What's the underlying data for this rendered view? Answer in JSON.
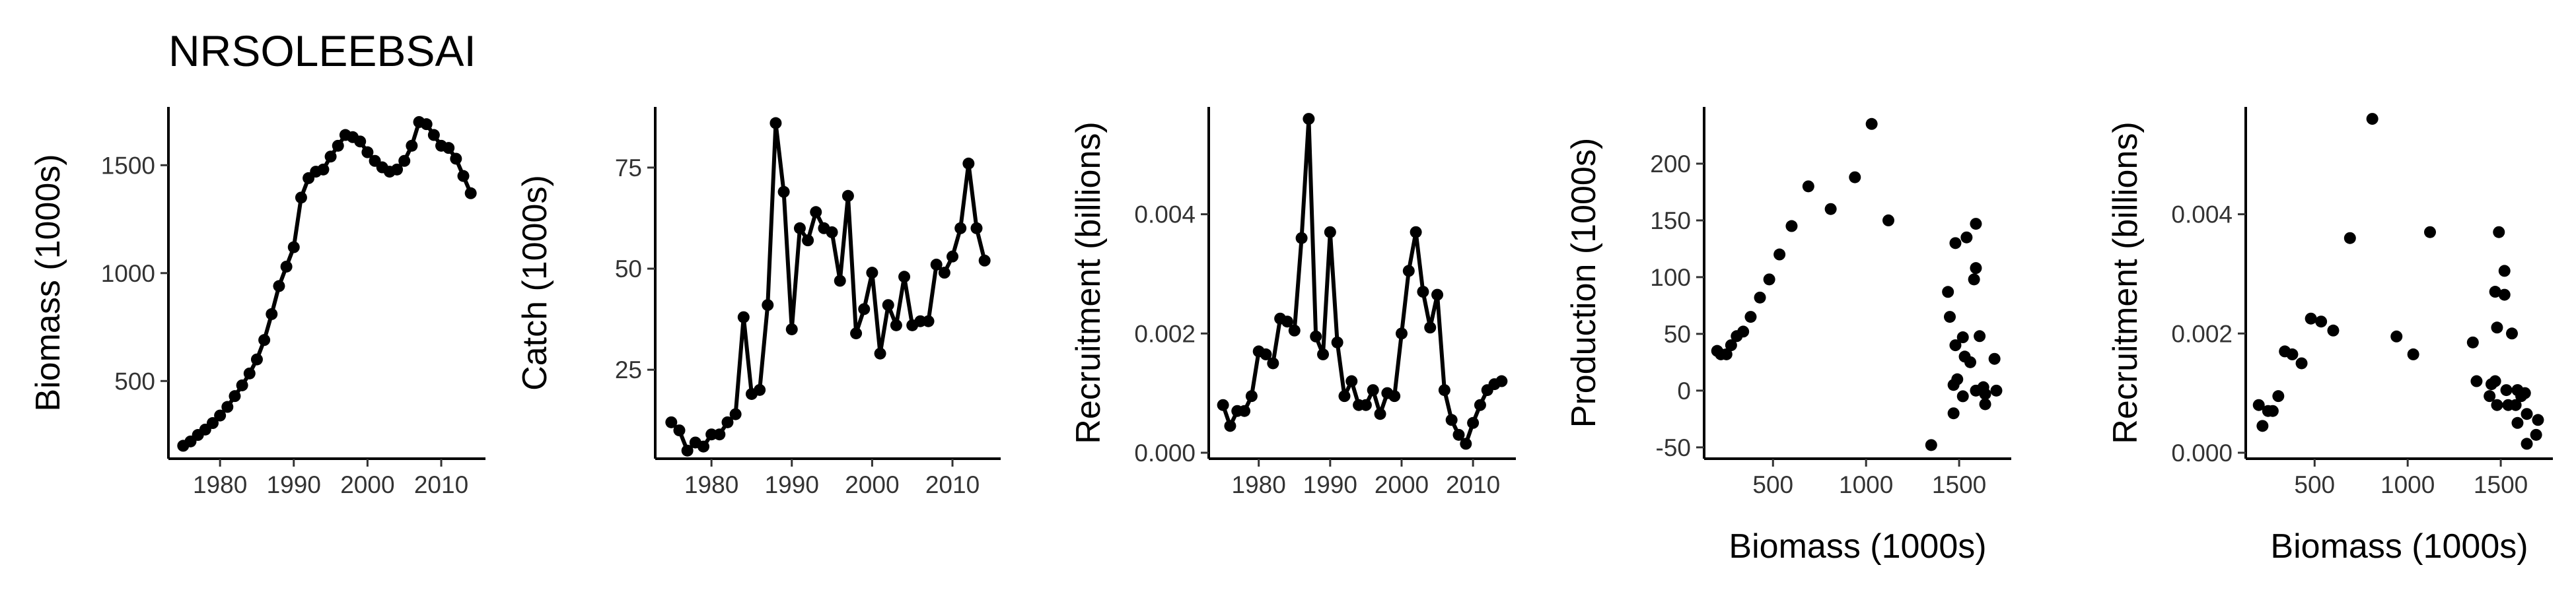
{
  "figure": {
    "title": "NRSOLEEBSAI"
  },
  "chart_data": [
    {
      "type": "line",
      "title": "",
      "xlabel": "",
      "ylabel": "Biomass (1000s)",
      "xlim": [
        1973,
        2016
      ],
      "ylim": [
        140,
        1770
      ],
      "xticks": [
        1980,
        1990,
        2000,
        2010
      ],
      "yticks": [
        500,
        1000,
        1500
      ],
      "markers": true,
      "x": [
        1975,
        1976,
        1977,
        1978,
        1979,
        1980,
        1981,
        1982,
        1983,
        1984,
        1985,
        1986,
        1987,
        1988,
        1989,
        1990,
        1991,
        1992,
        1993,
        1994,
        1995,
        1996,
        1997,
        1998,
        1999,
        2000,
        2001,
        2002,
        2003,
        2004,
        2005,
        2006,
        2007,
        2008,
        2009,
        2010,
        2011,
        2012,
        2013,
        2014
      ],
      "y": [
        200,
        220,
        250,
        275,
        305,
        340,
        380,
        430,
        480,
        535,
        600,
        690,
        810,
        940,
        1030,
        1120,
        1350,
        1440,
        1470,
        1480,
        1540,
        1590,
        1640,
        1630,
        1610,
        1560,
        1520,
        1490,
        1470,
        1480,
        1520,
        1590,
        1700,
        1690,
        1640,
        1590,
        1580,
        1530,
        1450,
        1370
      ]
    },
    {
      "type": "line",
      "title": "",
      "xlabel": "",
      "ylabel": "Catch (1000s)",
      "xlim": [
        1973,
        2016
      ],
      "ylim": [
        3,
        90
      ],
      "xticks": [
        1980,
        1990,
        2000,
        2010
      ],
      "yticks": [
        25,
        50,
        75
      ],
      "markers": true,
      "x": [
        1975,
        1976,
        1977,
        1978,
        1979,
        1980,
        1981,
        1982,
        1983,
        1984,
        1985,
        1986,
        1987,
        1988,
        1989,
        1990,
        1991,
        1992,
        1993,
        1994,
        1995,
        1996,
        1997,
        1998,
        1999,
        2000,
        2001,
        2002,
        2003,
        2004,
        2005,
        2006,
        2007,
        2008,
        2009,
        2010,
        2011,
        2012,
        2013,
        2014
      ],
      "y": [
        12,
        10,
        5,
        7,
        6,
        9,
        9,
        12,
        14,
        38,
        19,
        20,
        41,
        86,
        69,
        35,
        60,
        57,
        64,
        60,
        59,
        47,
        68,
        34,
        40,
        49,
        29,
        41,
        36,
        48,
        36,
        37,
        37,
        51,
        49,
        53,
        60,
        76,
        60,
        52
      ]
    },
    {
      "type": "line",
      "title": "",
      "xlabel": "",
      "ylabel": "Recruitment (billions)",
      "xlim": [
        1973,
        2016
      ],
      "ylim": [
        -0.0001,
        0.0058
      ],
      "xticks": [
        1980,
        1990,
        2000,
        2010
      ],
      "yticks": [
        0.0,
        0.002,
        0.004
      ],
      "ytick_labels": [
        "0.000",
        "0.002",
        "0.004"
      ],
      "markers": true,
      "x": [
        1975,
        1976,
        1977,
        1978,
        1979,
        1980,
        1981,
        1982,
        1983,
        1984,
        1985,
        1986,
        1987,
        1988,
        1989,
        1990,
        1991,
        1992,
        1993,
        1994,
        1995,
        1996,
        1997,
        1998,
        1999,
        2000,
        2001,
        2002,
        2003,
        2004,
        2005,
        2006,
        2007,
        2008,
        2009,
        2010,
        2011,
        2012,
        2013,
        2014
      ],
      "y": [
        0.0008,
        0.00045,
        0.0007,
        0.0007,
        0.00095,
        0.0017,
        0.00165,
        0.0015,
        0.00225,
        0.0022,
        0.00205,
        0.0036,
        0.0056,
        0.00195,
        0.00165,
        0.0037,
        0.00185,
        0.00095,
        0.0012,
        0.0008,
        0.0008,
        0.00105,
        0.00065,
        0.001,
        0.00095,
        0.002,
        0.00305,
        0.0037,
        0.0027,
        0.0021,
        0.00265,
        0.00105,
        0.00055,
        0.0003,
        0.00015,
        0.0005,
        0.0008,
        0.00105,
        0.00115,
        0.0012
      ]
    },
    {
      "type": "scatter",
      "title": "",
      "xlabel": "Biomass (1000s)",
      "ylabel": "Production (1000s)",
      "xlim": [
        130,
        1780
      ],
      "ylim": [
        -60,
        250
      ],
      "xticks": [
        500,
        1000,
        1500
      ],
      "yticks": [
        -50,
        0,
        50,
        100,
        150,
        200
      ],
      "x": [
        200,
        220,
        250,
        275,
        305,
        340,
        380,
        430,
        480,
        535,
        600,
        690,
        810,
        940,
        1030,
        1120,
        1350,
        1440,
        1470,
        1480,
        1540,
        1590,
        1640,
        1630,
        1610,
        1560,
        1520,
        1490,
        1470,
        1480,
        1520,
        1590,
        1700,
        1690,
        1640,
        1590,
        1580,
        1530,
        1450
      ],
      "y": [
        35,
        32,
        32,
        40,
        48,
        52,
        65,
        82,
        98,
        120,
        145,
        180,
        160,
        188,
        235,
        150,
        -48,
        87,
        -20,
        130,
        135,
        108,
        -3,
        3,
        48,
        25,
        -5,
        10,
        5,
        40,
        47,
        147,
        0,
        28,
        -12,
        0,
        98,
        30,
        65
      ]
    },
    {
      "type": "scatter",
      "title": "",
      "xlabel": "Biomass (1000s)",
      "ylabel": "Recruitment (billions)",
      "xlim": [
        130,
        1780
      ],
      "ylim": [
        -0.0001,
        0.0058
      ],
      "xticks": [
        500,
        1000,
        1500
      ],
      "yticks": [
        0.0,
        0.002,
        0.004
      ],
      "ytick_labels": [
        "0.000",
        "0.002",
        "0.004"
      ],
      "x": [
        200,
        220,
        250,
        275,
        305,
        340,
        380,
        430,
        480,
        535,
        600,
        690,
        810,
        940,
        1030,
        1120,
        1350,
        1440,
        1470,
        1480,
        1540,
        1590,
        1640,
        1630,
        1610,
        1560,
        1520,
        1490,
        1470,
        1480,
        1520,
        1590,
        1700,
        1690,
        1640,
        1590,
        1580,
        1530,
        1450,
        1370
      ],
      "y": [
        0.0008,
        0.00045,
        0.0007,
        0.0007,
        0.00095,
        0.0017,
        0.00165,
        0.0015,
        0.00225,
        0.0022,
        0.00205,
        0.0036,
        0.0056,
        0.00195,
        0.00165,
        0.0037,
        0.00185,
        0.00095,
        0.0012,
        0.0008,
        0.0008,
        0.00105,
        0.00065,
        0.001,
        0.00095,
        0.002,
        0.00305,
        0.0037,
        0.0027,
        0.0021,
        0.00265,
        0.00105,
        0.00055,
        0.0003,
        0.00015,
        0.0005,
        0.0008,
        0.00105,
        0.00115,
        0.0012
      ]
    }
  ]
}
